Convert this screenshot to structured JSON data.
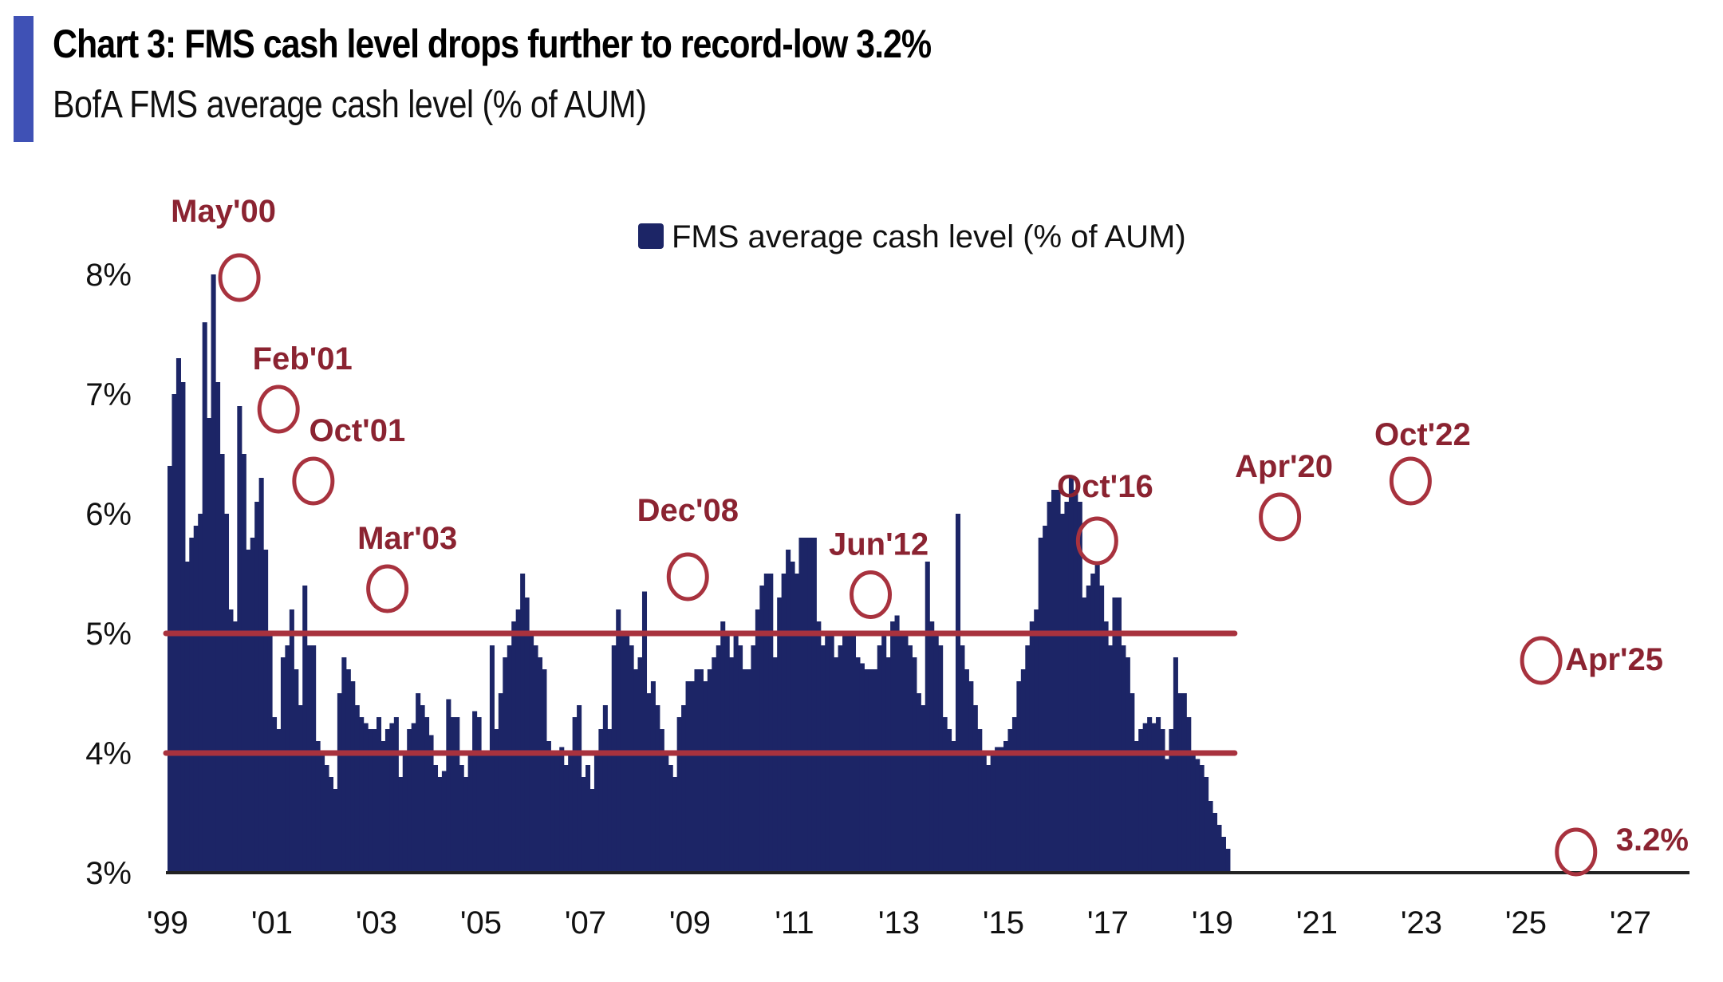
{
  "header": {
    "title": "Chart 3: FMS cash level drops further to record-low 3.2%",
    "subtitle": "BofA FMS average cash level (% of AUM)"
  },
  "colors": {
    "accent": "#3f51b5",
    "bars": "#1c2566",
    "reference_lines": "#a8323e",
    "annotation": "#8b2331",
    "axis": "#222222"
  },
  "chart_data": {
    "type": "bar",
    "title": "Chart 3: FMS cash level drops further to record-low 3.2%",
    "subtitle": "BofA FMS average cash level (% of AUM)",
    "xlabel": "",
    "ylabel": "",
    "ylim": [
      3,
      8.5
    ],
    "xlim": [
      1999,
      2027.5
    ],
    "grid": false,
    "legend": {
      "position": "top-center",
      "entries": [
        "FMS average cash level (% of AUM)"
      ]
    },
    "y_ticks": [
      {
        "value": 3,
        "label": "3%"
      },
      {
        "value": 4,
        "label": "4%"
      },
      {
        "value": 5,
        "label": "5%"
      },
      {
        "value": 6,
        "label": "6%"
      },
      {
        "value": 7,
        "label": "7%"
      },
      {
        "value": 8,
        "label": "8%"
      }
    ],
    "x_ticks": [
      {
        "value": 1999,
        "label": "'99"
      },
      {
        "value": 2001,
        "label": "'01"
      },
      {
        "value": 2003,
        "label": "'03"
      },
      {
        "value": 2005,
        "label": "'05"
      },
      {
        "value": 2007,
        "label": "'07"
      },
      {
        "value": 2009,
        "label": "'09"
      },
      {
        "value": 2011,
        "label": "'11"
      },
      {
        "value": 2013,
        "label": "'13"
      },
      {
        "value": 2015,
        "label": "'15"
      },
      {
        "value": 2017,
        "label": "'17"
      },
      {
        "value": 2019,
        "label": "'19"
      },
      {
        "value": 2021,
        "label": "'21"
      },
      {
        "value": 2023,
        "label": "'23"
      },
      {
        "value": 2025,
        "label": "'25"
      },
      {
        "value": 2027,
        "label": "'27"
      }
    ],
    "reference_lines": [
      5.0,
      4.0
    ],
    "series": [
      {
        "name": "FMS average cash level (% of AUM)",
        "start": "1999-01",
        "frequency": "monthly",
        "values": [
          6.4,
          7.0,
          7.3,
          7.1,
          5.6,
          5.8,
          5.9,
          6.0,
          7.6,
          6.8,
          8.0,
          7.1,
          6.5,
          6.0,
          5.2,
          5.1,
          6.9,
          6.5,
          5.7,
          5.8,
          6.1,
          6.3,
          5.7,
          5.0,
          4.3,
          4.2,
          4.8,
          4.9,
          5.2,
          4.7,
          4.4,
          5.4,
          4.9,
          4.9,
          4.1,
          4.0,
          3.9,
          3.8,
          3.7,
          4.5,
          4.8,
          4.7,
          4.6,
          4.4,
          4.3,
          4.25,
          4.2,
          4.2,
          4.3,
          4.1,
          4.2,
          4.25,
          4.3,
          3.8,
          4.0,
          4.2,
          4.25,
          4.5,
          4.4,
          4.3,
          4.15,
          3.9,
          3.8,
          3.85,
          4.45,
          4.3,
          4.3,
          3.9,
          3.8,
          4.0,
          4.35,
          4.3,
          4.0,
          4.0,
          4.9,
          4.2,
          4.5,
          4.8,
          4.9,
          5.1,
          5.2,
          5.5,
          5.3,
          5.0,
          4.9,
          4.8,
          4.7,
          4.1,
          4.0,
          4.0,
          4.05,
          3.9,
          4.0,
          4.3,
          4.4,
          3.8,
          3.9,
          3.7,
          4.0,
          4.2,
          4.4,
          4.2,
          4.9,
          5.2,
          5.0,
          5.0,
          4.9,
          4.7,
          4.8,
          5.35,
          4.5,
          4.6,
          4.4,
          4.2,
          4.0,
          3.9,
          3.8,
          4.3,
          4.4,
          4.6,
          4.6,
          4.7,
          4.7,
          4.6,
          4.7,
          4.8,
          4.9,
          5.1,
          5.0,
          4.8,
          5.0,
          4.9,
          4.7,
          4.7,
          4.9,
          5.2,
          5.4,
          5.5,
          5.5,
          4.8,
          5.3,
          5.5,
          5.7,
          5.6,
          5.5,
          5.8,
          5.8,
          5.8,
          5.8,
          5.1,
          4.9,
          5.0,
          5.0,
          4.8,
          4.9,
          5.0,
          5.0,
          5.0,
          4.8,
          4.75,
          4.7,
          4.7,
          4.7,
          4.9,
          5.0,
          4.8,
          5.1,
          5.15,
          5.0,
          5.0,
          4.9,
          4.8,
          4.5,
          4.4,
          5.6,
          5.1,
          5.0,
          4.9,
          4.3,
          4.2,
          4.1,
          6.0,
          4.9,
          4.7,
          4.6,
          4.4,
          4.2,
          4.0,
          3.9,
          4.0,
          4.05,
          4.05,
          4.1,
          4.2,
          4.3,
          4.6,
          4.7,
          4.9,
          5.1,
          5.2,
          5.8,
          5.9,
          6.1,
          6.2,
          6.2,
          6.0,
          6.1,
          6.3,
          6.2,
          6.1,
          5.3,
          5.4,
          5.5,
          5.6,
          5.4,
          5.1,
          4.9,
          5.3,
          5.3,
          4.9,
          4.8,
          4.5,
          4.1,
          4.2,
          4.25,
          4.3,
          4.25,
          4.3,
          4.2,
          3.95,
          4.2,
          4.8,
          4.5,
          4.5,
          4.3,
          4.0,
          3.95,
          3.9,
          3.8,
          3.6,
          3.5,
          3.4,
          3.3,
          3.2
        ]
      }
    ],
    "annotations": [
      {
        "label": "May'00",
        "date": "2000-05",
        "value": 8.0
      },
      {
        "label": "Feb'01",
        "date": "2001-02",
        "value": 6.9
      },
      {
        "label": "Oct'01",
        "date": "2001-10",
        "value": 6.3
      },
      {
        "label": "Mar'03",
        "date": "2003-03",
        "value": 5.4
      },
      {
        "label": "Dec'08",
        "date": "2008-12",
        "value": 5.5
      },
      {
        "label": "Jun'12",
        "date": "2012-06",
        "value": 5.35
      },
      {
        "label": "Oct'16",
        "date": "2016-10",
        "value": 5.8
      },
      {
        "label": "Apr'20",
        "date": "2020-04",
        "value": 6.0
      },
      {
        "label": "Oct'22",
        "date": "2022-10",
        "value": 6.3
      },
      {
        "label": "Apr'25",
        "date": "2025-04",
        "value": 4.8
      },
      {
        "label": "3.2%",
        "date": "2025-12",
        "value": 3.2
      }
    ]
  }
}
